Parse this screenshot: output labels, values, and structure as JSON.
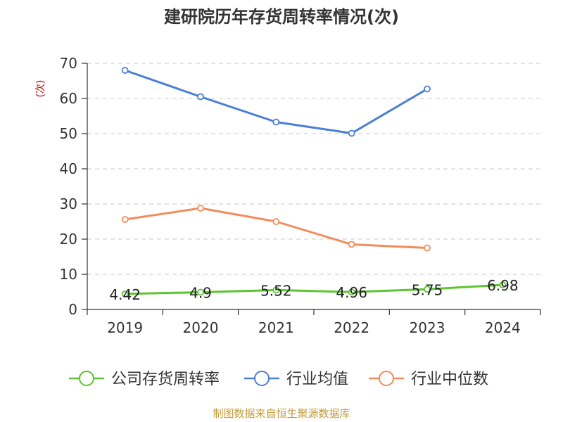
{
  "chart_data": {
    "type": "line",
    "title": "建研院历年存货周转率情况(次)",
    "ylabel": "(次)",
    "xlabel": "",
    "categories": [
      "2019",
      "2020",
      "2021",
      "2022",
      "2023",
      "2024"
    ],
    "ylim": [
      0,
      70
    ],
    "yticks": [
      0,
      10,
      20,
      30,
      40,
      50,
      60,
      70
    ],
    "grid": true,
    "legend_position": "bottom",
    "series": [
      {
        "name": "公司存货周转率",
        "color": "#5cc52f",
        "values": [
          4.42,
          4.9,
          5.52,
          4.96,
          5.75,
          6.98
        ],
        "labels": [
          "4.42",
          "4.9",
          "5.52",
          "4.96",
          "5.75",
          "6.98"
        ]
      },
      {
        "name": "行业均值",
        "color": "#4a7fd6",
        "values": [
          68,
          60.5,
          53.3,
          50.1,
          62.7,
          null
        ]
      },
      {
        "name": "行业中位数",
        "color": "#f28c5a",
        "values": [
          25.6,
          28.8,
          25,
          18.5,
          17.5,
          null
        ]
      }
    ],
    "source": "制图数据来自恒生聚源数据库"
  }
}
